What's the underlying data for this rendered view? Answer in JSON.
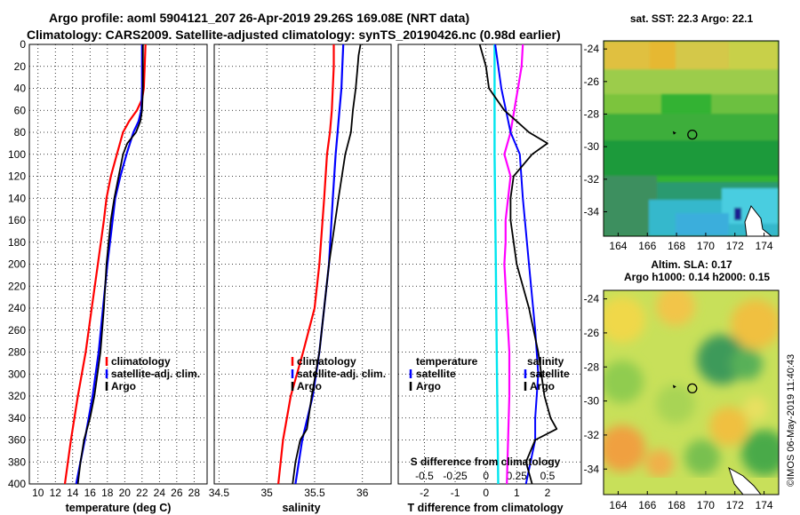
{
  "title_line1": "Argo profile: aoml 5904121_207 26-Apr-2019 29.26S 169.08E (NRT data)",
  "title_line2": "Climatology: CARS2009. Satellite-adjusted climatology: synTS_20190426.nc (0.98d earlier)",
  "footer_credit": "©IMOS 06-May-2019 11:40:43",
  "colors": {
    "climatology": "#ff0000",
    "satellite": "#0000ff",
    "argo": "#000000",
    "temp_diff": "#00e5ee",
    "sal_diff": "#ff00ff"
  },
  "chart_data": [
    {
      "type": "line",
      "name": "temperature_profile",
      "xlabel": "temperature (deg C)",
      "ylabel": "",
      "xlim": [
        9,
        29.5
      ],
      "ylim": [
        0,
        400
      ],
      "xticks": [
        10,
        12,
        14,
        16,
        18,
        20,
        22,
        24,
        26,
        28
      ],
      "yticks": [
        0,
        20,
        40,
        60,
        80,
        100,
        120,
        140,
        160,
        180,
        200,
        220,
        240,
        260,
        280,
        300,
        320,
        340,
        360,
        380,
        400
      ],
      "legend": [
        "climatology",
        "satellite-adj. clim.",
        "Argo"
      ],
      "series": [
        {
          "name": "climatology",
          "depth": [
            0,
            20,
            40,
            50,
            60,
            70,
            80,
            100,
            120,
            140,
            160,
            200,
            240,
            280,
            320,
            360,
            400
          ],
          "values": [
            22.4,
            22.3,
            22.2,
            22.0,
            21.4,
            20.5,
            19.8,
            19.1,
            18.4,
            17.9,
            17.6,
            16.9,
            16.2,
            15.5,
            14.6,
            13.8,
            13.1
          ]
        },
        {
          "name": "satellite-adj. clim.",
          "depth": [
            0,
            20,
            40,
            60,
            70,
            80,
            100,
            120,
            140,
            160,
            200,
            240,
            280,
            320,
            360,
            400
          ],
          "values": [
            22.0,
            22.0,
            22.0,
            21.9,
            21.6,
            21.0,
            20.2,
            19.5,
            18.9,
            18.6,
            18.0,
            17.5,
            17.0,
            16.3,
            15.4,
            14.4
          ]
        },
        {
          "name": "Argo",
          "depth": [
            0,
            20,
            40,
            60,
            70,
            80,
            90,
            100,
            120,
            140,
            160,
            200,
            240,
            280,
            320,
            340,
            360,
            380,
            400
          ],
          "values": [
            22.1,
            22.1,
            22.1,
            22.0,
            21.8,
            21.3,
            20.3,
            19.8,
            19.3,
            18.8,
            18.4,
            17.9,
            17.6,
            17.2,
            16.5,
            16.0,
            15.3,
            14.9,
            14.6
          ]
        }
      ]
    },
    {
      "type": "line",
      "name": "salinity_profile",
      "xlabel": "salinity",
      "ylabel": "",
      "xlim": [
        34.45,
        36.3
      ],
      "ylim": [
        0,
        400
      ],
      "xticks": [
        34.5,
        35,
        35.5,
        36
      ],
      "xtick_labels": [
        "34.5",
        "35",
        "35.5",
        "36"
      ],
      "legend": [
        "climatology",
        "satellite-adj. clim.",
        "Argo"
      ],
      "series": [
        {
          "name": "climatology",
          "depth": [
            0,
            20,
            40,
            60,
            80,
            100,
            140,
            200,
            240,
            280,
            320,
            360,
            400
          ],
          "values": [
            35.7,
            35.7,
            35.69,
            35.68,
            35.66,
            35.63,
            35.6,
            35.55,
            35.5,
            35.38,
            35.25,
            35.17,
            35.12
          ]
        },
        {
          "name": "satellite-adj. clim.",
          "depth": [
            0,
            20,
            40,
            60,
            80,
            100,
            140,
            200,
            240,
            280,
            320,
            360,
            400
          ],
          "values": [
            35.8,
            35.79,
            35.78,
            35.76,
            35.74,
            35.72,
            35.69,
            35.65,
            35.6,
            35.55,
            35.48,
            35.37,
            35.3
          ]
        },
        {
          "name": "Argo",
          "depth": [
            0,
            10,
            20,
            40,
            60,
            80,
            100,
            140,
            200,
            240,
            280,
            320,
            350,
            360,
            380,
            400
          ],
          "values": [
            35.98,
            35.96,
            35.95,
            35.93,
            35.9,
            35.88,
            35.82,
            35.75,
            35.65,
            35.6,
            35.55,
            35.47,
            35.42,
            35.35,
            35.3,
            35.27
          ]
        }
      ]
    },
    {
      "type": "line",
      "name": "difference_profile",
      "xlabel": "T difference from climatology",
      "xlabel_top": "S difference from climatology",
      "xlim": [
        -2.85,
        3.1
      ],
      "ylim": [
        0,
        400
      ],
      "xticks": [
        -2,
        -1,
        0,
        1,
        2
      ],
      "xtick_labels": [
        "-2",
        "-1",
        "0",
        "1",
        "2"
      ],
      "sticks": [
        -0.5,
        -0.25,
        0,
        0.25,
        0.5
      ],
      "stick_labels": [
        "-0.5",
        "-0.25",
        "0",
        "0.25",
        "0.5"
      ],
      "s_scale": 4,
      "legend_left_title": "temperature",
      "legend_right_title": "salinity",
      "legend": [
        "satellite",
        "Argo"
      ],
      "series": [
        {
          "name": "temperature satellite",
          "depth": [
            0,
            40,
            80,
            100,
            140,
            200,
            260,
            300,
            340,
            360,
            400
          ],
          "values": [
            0.3,
            0.5,
            0.8,
            1.1,
            1.2,
            1.4,
            1.6,
            1.7,
            1.6,
            1.6,
            1.3
          ]
        },
        {
          "name": "temperature Argo",
          "depth": [
            0,
            20,
            40,
            60,
            70,
            80,
            90,
            100,
            120,
            140,
            160,
            200,
            240,
            280,
            300,
            320,
            340,
            350,
            360,
            380,
            400
          ],
          "values": [
            -0.2,
            0.0,
            0.1,
            0.6,
            1.0,
            1.4,
            2.0,
            1.5,
            0.9,
            0.8,
            0.8,
            1.0,
            1.4,
            1.7,
            1.8,
            1.9,
            2.1,
            2.3,
            1.6,
            1.3,
            1.5
          ]
        },
        {
          "name": "salinity satellite",
          "depth": [
            0,
            100,
            200,
            300,
            400
          ],
          "values": [
            0.07,
            0.07,
            0.08,
            0.09,
            0.1
          ]
        },
        {
          "name": "salinity Argo",
          "depth": [
            0,
            20,
            40,
            60,
            80,
            100,
            120,
            140,
            160,
            180,
            200,
            240,
            280,
            320,
            360,
            400
          ],
          "values": [
            0.3,
            0.29,
            0.26,
            0.23,
            0.2,
            0.15,
            0.2,
            0.18,
            0.16,
            0.16,
            0.15,
            0.17,
            0.19,
            0.19,
            0.18,
            0.17
          ]
        }
      ]
    },
    {
      "type": "heatmap",
      "name": "sst_map",
      "title": "sat. SST: 22.3 Argo: 22.1",
      "xlim": [
        163,
        175
      ],
      "ylim": [
        -35.5,
        -23.5
      ],
      "xticks": [
        164,
        166,
        168,
        170,
        172,
        174
      ],
      "yticks": [
        -24,
        -26,
        -28,
        -30,
        -32,
        -34
      ],
      "marker": {
        "lon": 169.08,
        "lat": -29.26
      }
    },
    {
      "type": "heatmap",
      "name": "sla_map",
      "title_line1": "Altim. SLA: 0.17",
      "title_line2": "Argo h1000: 0.14 h2000: 0.15",
      "xlim": [
        163,
        175
      ],
      "ylim": [
        -35.5,
        -23.5
      ],
      "xticks": [
        164,
        166,
        168,
        170,
        172,
        174
      ],
      "yticks": [
        -24,
        -26,
        -28,
        -30,
        -32,
        -34
      ],
      "marker": {
        "lon": 169.08,
        "lat": -29.26
      }
    }
  ]
}
